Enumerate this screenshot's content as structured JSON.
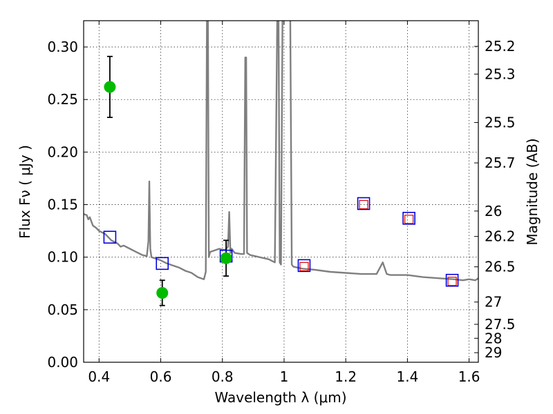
{
  "chart_data": {
    "type": "scatter",
    "title": "",
    "xlabel": "Wavelength  λ (μm)",
    "ylabel": "Flux  Fν  ( μJy )",
    "y2label": "Magnitude (AB)",
    "xlim": [
      0.35,
      1.63
    ],
    "ylim": [
      0.0,
      0.325
    ],
    "grid": true,
    "x_ticks": [
      0.4,
      0.6,
      0.8,
      1.0,
      1.2,
      1.4,
      1.6
    ],
    "x_tick_labels": [
      "0.4",
      "0.6",
      "0.8",
      "1",
      "1.2",
      "1.4",
      "1.6"
    ],
    "y_ticks": [
      0.0,
      0.05,
      0.1,
      0.15,
      0.2,
      0.25,
      0.3
    ],
    "y_tick_labels": [
      "0.00",
      "0.05",
      "0.10",
      "0.15",
      "0.20",
      "0.25",
      "0.30"
    ],
    "y2_ticks": [
      {
        "label": "25.2",
        "flux": 0.3006
      },
      {
        "label": "25.3",
        "flux": 0.2742
      },
      {
        "label": "25.5",
        "flux": 0.2281
      },
      {
        "label": "25.7",
        "flux": 0.1897
      },
      {
        "label": "26",
        "flux": 0.1439
      },
      {
        "label": "26.2",
        "flux": 0.1197
      },
      {
        "label": "26.5",
        "flux": 0.0908
      },
      {
        "label": "27",
        "flux": 0.0573
      },
      {
        "label": "27.5",
        "flux": 0.0361
      },
      {
        "label": "28",
        "flux": 0.0228
      },
      {
        "label": "29",
        "flux": 0.0091
      }
    ],
    "colors": {
      "sed": "#7f7f7f",
      "observed": "#00bb00",
      "model_blue": "#0000dd",
      "model_red": "#dd0000"
    },
    "series": [
      {
        "kind": "line",
        "x": [
          0.35,
          0.36,
          0.365,
          0.37,
          0.38,
          0.39,
          0.4,
          0.42,
          0.44,
          0.46,
          0.47,
          0.48,
          0.5,
          0.52,
          0.54,
          0.555,
          0.56,
          0.563,
          0.566,
          0.57,
          0.58,
          0.6,
          0.62,
          0.64,
          0.66,
          0.68,
          0.7,
          0.72,
          0.74,
          0.746,
          0.75,
          0.753,
          0.756,
          0.76,
          0.77,
          0.79,
          0.8,
          0.81,
          0.818,
          0.822,
          0.826,
          0.83,
          0.84,
          0.86,
          0.87,
          0.874,
          0.877,
          0.88,
          0.89,
          0.92,
          0.95,
          0.97,
          0.978,
          0.982,
          0.986,
          0.99,
          0.995,
          1.0,
          1.005,
          1.01,
          1.015,
          1.02,
          1.025,
          1.03,
          1.06,
          1.1,
          1.15,
          1.2,
          1.25,
          1.3,
          1.32,
          1.333,
          1.345,
          1.4,
          1.45,
          1.5,
          1.55,
          1.58,
          1.6,
          1.62,
          1.63
        ],
        "y": [
          0.141,
          0.14,
          0.136,
          0.138,
          0.13,
          0.128,
          0.125,
          0.122,
          0.116,
          0.113,
          0.11,
          0.111,
          0.108,
          0.105,
          0.102,
          0.101,
          0.115,
          0.172,
          0.108,
          0.1,
          0.099,
          0.097,
          0.094,
          0.092,
          0.09,
          0.087,
          0.085,
          0.081,
          0.079,
          0.086,
          0.33,
          0.33,
          0.1,
          0.105,
          0.106,
          0.108,
          0.107,
          0.107,
          0.11,
          0.143,
          0.104,
          0.108,
          0.104,
          0.103,
          0.103,
          0.29,
          0.29,
          0.104,
          0.102,
          0.1,
          0.098,
          0.095,
          0.33,
          0.33,
          0.095,
          0.093,
          0.33,
          0.33,
          0.33,
          0.33,
          0.33,
          0.33,
          0.093,
          0.091,
          0.089,
          0.088,
          0.086,
          0.085,
          0.084,
          0.084,
          0.095,
          0.084,
          0.083,
          0.083,
          0.081,
          0.08,
          0.079,
          0.078,
          0.079,
          0.078,
          0.08
        ]
      },
      {
        "kind": "points-with-error",
        "x": [
          0.435,
          0.605,
          0.812
        ],
        "y": [
          0.262,
          0.066,
          0.099
        ],
        "yerr": [
          0.029,
          0.012,
          0.017
        ]
      },
      {
        "kind": "model-squares",
        "x": [
          0.435,
          0.605,
          0.812,
          1.065,
          1.258,
          1.405,
          1.545
        ],
        "y": [
          0.119,
          0.094,
          0.101,
          0.092,
          0.151,
          0.137,
          0.078
        ]
      },
      {
        "kind": "model-squares-small",
        "x": [
          1.065,
          1.258,
          1.405,
          1.545
        ],
        "y": [
          0.091,
          0.15,
          0.136,
          0.077
        ]
      }
    ]
  }
}
